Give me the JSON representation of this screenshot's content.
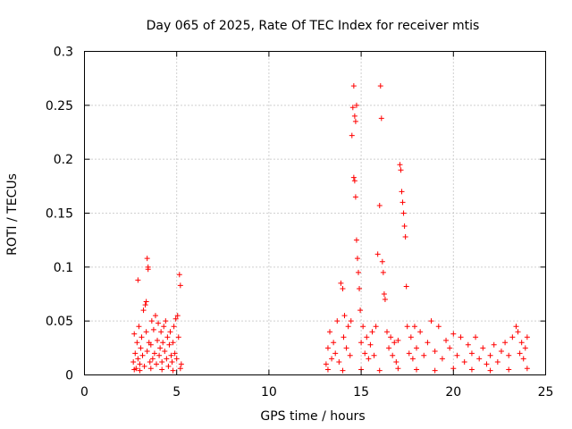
{
  "chart_data": {
    "type": "scatter",
    "title": "Day 065 of 2025, Rate Of TEC Index for receiver mtis",
    "xlabel": "GPS time / hours",
    "ylabel": "ROTI / TECUs",
    "xlim": [
      0,
      25
    ],
    "ylim": [
      0,
      0.3
    ],
    "xticks": [
      0,
      5,
      10,
      15,
      20,
      25
    ],
    "xtick_labels": [
      "0",
      "5",
      "10",
      "15",
      "20",
      "25"
    ],
    "yticks": [
      0,
      0.05,
      0.1,
      0.15,
      0.2,
      0.25,
      0.3
    ],
    "ytick_labels": [
      "0",
      "0.05",
      "0.1",
      "0.15",
      "0.2",
      "0.25",
      "0.3"
    ],
    "grid": true,
    "marker": "+",
    "color": "#ff0000",
    "series": [
      {
        "name": "ROTI",
        "points": [
          [
            2.65,
            0.012
          ],
          [
            2.7,
            0.038
          ],
          [
            2.75,
            0.02
          ],
          [
            2.8,
            0.006
          ],
          [
            2.85,
            0.03
          ],
          [
            2.9,
            0.015
          ],
          [
            2.95,
            0.045
          ],
          [
            3.0,
            0.01
          ],
          [
            3.05,
            0.025
          ],
          [
            3.1,
            0.035
          ],
          [
            3.15,
            0.018
          ],
          [
            3.2,
            0.06
          ],
          [
            3.25,
            0.008
          ],
          [
            3.3,
            0.065
          ],
          [
            3.35,
            0.04
          ],
          [
            3.4,
            0.022
          ],
          [
            3.45,
            0.1
          ],
          [
            3.5,
            0.03
          ],
          [
            3.55,
            0.012
          ],
          [
            3.6,
            0.028
          ],
          [
            3.65,
            0.05
          ],
          [
            3.7,
            0.015
          ],
          [
            3.75,
            0.042
          ],
          [
            3.8,
            0.02
          ],
          [
            3.85,
            0.055
          ],
          [
            3.9,
            0.01
          ],
          [
            3.95,
            0.032
          ],
          [
            4.0,
            0.048
          ],
          [
            4.05,
            0.018
          ],
          [
            4.1,
            0.025
          ],
          [
            4.15,
            0.04
          ],
          [
            4.2,
            0.012
          ],
          [
            4.25,
            0.03
          ],
          [
            4.3,
            0.045
          ],
          [
            4.35,
            0.022
          ],
          [
            4.4,
            0.05
          ],
          [
            4.45,
            0.015
          ],
          [
            4.5,
            0.035
          ],
          [
            4.55,
            0.008
          ],
          [
            4.6,
            0.028
          ],
          [
            4.65,
            0.04
          ],
          [
            4.7,
            0.018
          ],
          [
            4.75,
            0.012
          ],
          [
            4.8,
            0.03
          ],
          [
            4.85,
            0.045
          ],
          [
            4.9,
            0.02
          ],
          [
            4.95,
            0.052
          ],
          [
            5.0,
            0.015
          ],
          [
            5.05,
            0.055
          ],
          [
            5.1,
            0.035
          ],
          [
            5.15,
            0.093
          ],
          [
            5.2,
            0.083
          ],
          [
            5.25,
            0.01
          ],
          [
            2.9,
            0.088
          ],
          [
            3.4,
            0.108
          ],
          [
            3.45,
            0.098
          ],
          [
            3.35,
            0.068
          ],
          [
            2.7,
            0.005
          ],
          [
            3.0,
            0.004
          ],
          [
            3.6,
            0.006
          ],
          [
            4.2,
            0.005
          ],
          [
            4.8,
            0.004
          ],
          [
            5.2,
            0.006
          ],
          [
            13.1,
            0.01
          ],
          [
            13.2,
            0.025
          ],
          [
            13.3,
            0.04
          ],
          [
            13.4,
            0.015
          ],
          [
            13.5,
            0.03
          ],
          [
            13.6,
            0.02
          ],
          [
            13.7,
            0.05
          ],
          [
            13.8,
            0.012
          ],
          [
            13.9,
            0.085
          ],
          [
            14.0,
            0.08
          ],
          [
            14.05,
            0.035
          ],
          [
            14.1,
            0.055
          ],
          [
            14.2,
            0.025
          ],
          [
            14.3,
            0.045
          ],
          [
            14.4,
            0.018
          ],
          [
            14.45,
            0.05
          ],
          [
            14.5,
            0.222
          ],
          [
            14.55,
            0.248
          ],
          [
            14.6,
            0.268
          ],
          [
            14.65,
            0.24
          ],
          [
            14.7,
            0.235
          ],
          [
            14.75,
            0.25
          ],
          [
            14.6,
            0.183
          ],
          [
            14.65,
            0.18
          ],
          [
            14.7,
            0.165
          ],
          [
            14.75,
            0.125
          ],
          [
            14.8,
            0.108
          ],
          [
            14.85,
            0.095
          ],
          [
            14.9,
            0.08
          ],
          [
            14.95,
            0.06
          ],
          [
            15.0,
            0.03
          ],
          [
            15.1,
            0.045
          ],
          [
            15.2,
            0.02
          ],
          [
            15.3,
            0.035
          ],
          [
            15.4,
            0.015
          ],
          [
            15.5,
            0.028
          ],
          [
            15.6,
            0.04
          ],
          [
            15.7,
            0.018
          ],
          [
            15.8,
            0.045
          ],
          [
            15.9,
            0.112
          ],
          [
            16.0,
            0.157
          ],
          [
            16.05,
            0.268
          ],
          [
            16.1,
            0.238
          ],
          [
            16.15,
            0.105
          ],
          [
            16.2,
            0.095
          ],
          [
            16.25,
            0.075
          ],
          [
            16.3,
            0.07
          ],
          [
            16.4,
            0.04
          ],
          [
            16.5,
            0.025
          ],
          [
            16.6,
            0.035
          ],
          [
            16.7,
            0.018
          ],
          [
            16.8,
            0.03
          ],
          [
            16.9,
            0.012
          ],
          [
            17.0,
            0.032
          ],
          [
            17.1,
            0.195
          ],
          [
            17.15,
            0.19
          ],
          [
            17.2,
            0.17
          ],
          [
            17.25,
            0.16
          ],
          [
            17.3,
            0.15
          ],
          [
            17.35,
            0.138
          ],
          [
            17.4,
            0.128
          ],
          [
            17.45,
            0.082
          ],
          [
            17.5,
            0.045
          ],
          [
            17.6,
            0.02
          ],
          [
            17.7,
            0.035
          ],
          [
            17.8,
            0.015
          ],
          [
            17.9,
            0.045
          ],
          [
            18.0,
            0.025
          ],
          [
            18.2,
            0.04
          ],
          [
            18.4,
            0.018
          ],
          [
            18.6,
            0.03
          ],
          [
            18.8,
            0.05
          ],
          [
            19.0,
            0.022
          ],
          [
            19.2,
            0.045
          ],
          [
            19.4,
            0.015
          ],
          [
            19.6,
            0.032
          ],
          [
            19.8,
            0.025
          ],
          [
            20.0,
            0.038
          ],
          [
            20.2,
            0.018
          ],
          [
            20.4,
            0.035
          ],
          [
            20.6,
            0.012
          ],
          [
            20.8,
            0.028
          ],
          [
            21.0,
            0.02
          ],
          [
            21.2,
            0.035
          ],
          [
            21.4,
            0.015
          ],
          [
            21.6,
            0.025
          ],
          [
            21.8,
            0.01
          ],
          [
            22.0,
            0.018
          ],
          [
            22.2,
            0.028
          ],
          [
            22.4,
            0.012
          ],
          [
            22.6,
            0.022
          ],
          [
            22.8,
            0.03
          ],
          [
            23.0,
            0.018
          ],
          [
            23.2,
            0.035
          ],
          [
            23.4,
            0.045
          ],
          [
            23.5,
            0.04
          ],
          [
            23.6,
            0.02
          ],
          [
            23.7,
            0.03
          ],
          [
            23.8,
            0.015
          ],
          [
            23.9,
            0.025
          ],
          [
            24.0,
            0.035
          ],
          [
            13.2,
            0.005
          ],
          [
            14.0,
            0.004
          ],
          [
            15.0,
            0.005
          ],
          [
            16.0,
            0.004
          ],
          [
            17.0,
            0.006
          ],
          [
            18.0,
            0.005
          ],
          [
            19.0,
            0.004
          ],
          [
            20.0,
            0.006
          ],
          [
            21.0,
            0.005
          ],
          [
            22.0,
            0.004
          ],
          [
            23.0,
            0.005
          ],
          [
            24.0,
            0.006
          ]
        ]
      }
    ]
  }
}
